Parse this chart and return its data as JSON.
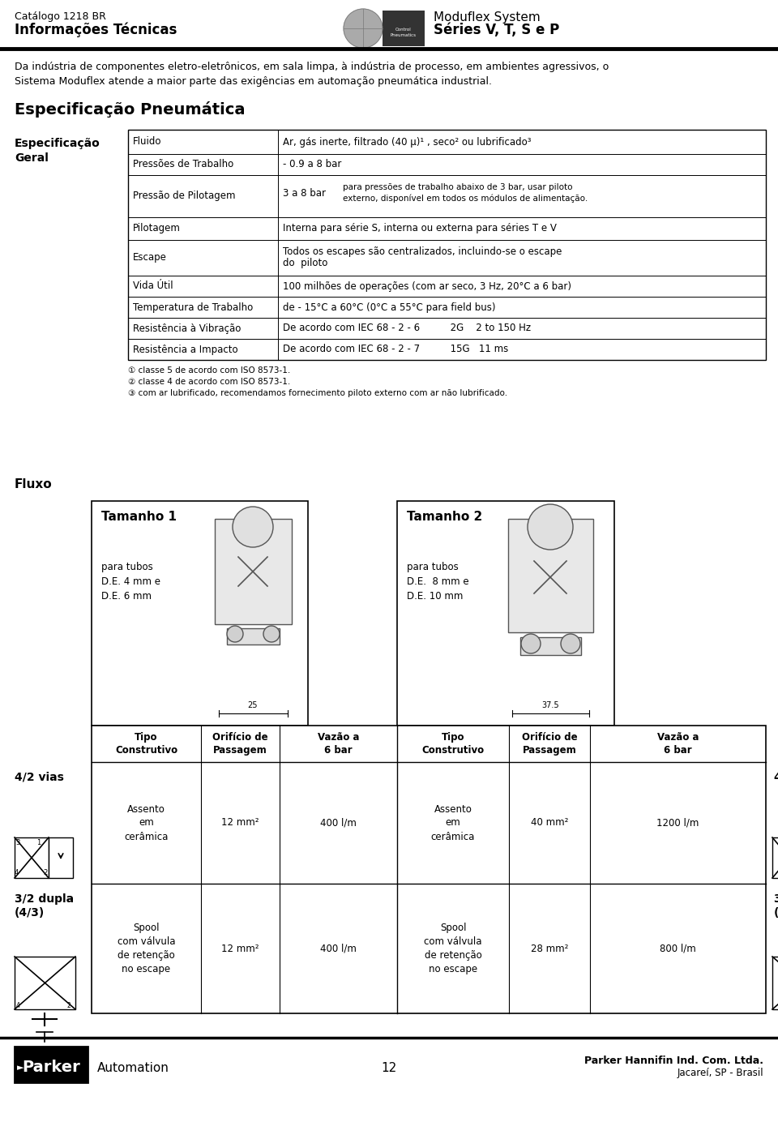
{
  "page_width": 9.6,
  "page_height": 13.84,
  "bg_color": "#ffffff",
  "header": {
    "left_line1": "Catálogo 1218 BR",
    "left_line2": "Informações Técnicas",
    "right_line1": "Moduflex System",
    "right_line2": "Séries V, T, S e P"
  },
  "intro_text": "Da indústria de componentes eletro-eletrônicos, em sala limpa, à indústria de processo, em ambientes agressivos, o\nSistema Moduflex atende a maior parte das exigências em automação pneumática industrial.",
  "section_title": "Especificação Pneumática",
  "spec_label": "Especificação\nGeral",
  "table_rows": [
    {
      "col1": "Fluido",
      "col2": "Ar, gás inerte, filtrado (40 μ)¹ , seco² ou lubrificado³"
    },
    {
      "col1": "Pressões de Trabalho",
      "col2": "- 0.9 a 8 bar"
    },
    {
      "col1": "Pressão de Pilotagem",
      "col2": "3 a 8 bar",
      "col2b": "para pressões de trabalho abaixo de 3 bar, usar piloto\nexterno, disponível em todos os módulos de alimentação."
    },
    {
      "col1": "Pilotagem",
      "col2": "Interna para série S, interna ou externa para séries T e V"
    },
    {
      "col1": "Escape",
      "col2": "Todos os escapes são centralizados, incluindo-se o escape\ndo  piloto"
    },
    {
      "col1": "Vida Útil",
      "col2": "100 milhões de operações (com ar seco, 3 Hz, 20°C a 6 bar)"
    },
    {
      "col1": "Temperatura de Trabalho",
      "col2": "de - 15°C a 60°C (0°C a 55°C para field bus)"
    },
    {
      "col1": "Resistência à Vibração",
      "col2": "De acordo com IEC 68 - 2 - 6          2G    2 to 150 Hz"
    },
    {
      "col1": "Resistência a Impacto",
      "col2": "De acordo com IEC 68 - 2 - 7          15G   11 ms"
    }
  ],
  "footnotes": [
    "① classe 5 de acordo com ISO 8573-1.",
    "② classe 4 de acordo com ISO 8573-1.",
    "③ com ar lubrificado, recomendamos fornecimento piloto externo com ar não lubrificado."
  ],
  "fluxo_title": "Fluxo",
  "tamanho1_title": "Tamanho 1",
  "tamanho1_desc": "para tubos\nD.E. 4 mm e\nD.E. 6 mm",
  "tamanho1_dim": "25",
  "tamanho2_title": "Tamanho 2",
  "tamanho2_desc": "para tubos\nD.E.  8 mm e\nD.E. 10 mm",
  "tamanho2_dim": "37.5",
  "col_headers": [
    "Tipo\nConstrutivo",
    "Orifício de\nPassagem",
    "Vazão a\n6 bar",
    "Tipo\nConstrutivo",
    "Orifício de\nPassagem",
    "Vazão a\n6 bar"
  ],
  "row1_label": "4/2 vias",
  "row1_col1": "Assento\nem\ncerâmica",
  "row1_col2": "12 mm²",
  "row1_col3": "400 l/m",
  "row1_col4": "Assento\nem\ncerâmica",
  "row1_col5": "40 mm²",
  "row1_col6": "1200 l/m",
  "row2_label": "3/2 dupla\n(4/3)",
  "row2_col1": "Spool\ncom válvula\nde retenção\nno escape",
  "row2_col2": "12 mm²",
  "row2_col3": "400 l/m",
  "row2_col4": "Spool\ncom válvula\nde retenção\nno escape",
  "row2_col5": "28 mm²",
  "row2_col6": "800 l/m",
  "footer_page": "12",
  "footer_company": "Parker Hannifin Ind. Com. Ltda.",
  "footer_location": "Jacareí, SP - Brasil"
}
